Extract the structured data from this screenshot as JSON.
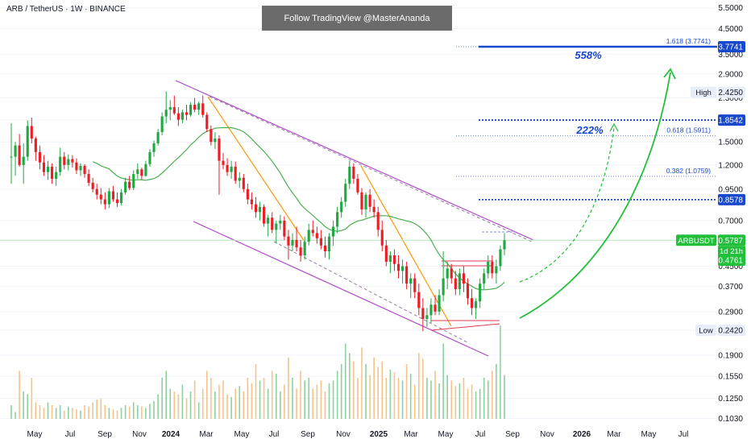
{
  "header": {
    "symbol_line": "ARB / TetherUS · 1W · BINANCE"
  },
  "banner": {
    "text": "Follow TradingView @MasterAnanda"
  },
  "chart_data": {
    "type": "candlestick",
    "scale": "log",
    "y_ticks": [
      "5.5000",
      "4.5000",
      "3.5000",
      "2.9000",
      "2.3000",
      "1.8542",
      "1.5000",
      "1.2000",
      "0.9500",
      "0.7000",
      "0.5787",
      "0.4500",
      "0.3700",
      "0.2900",
      "0.2420",
      "0.1900",
      "0.1550",
      "0.1250",
      "0.1030"
    ],
    "x_ticks": [
      "May",
      "Jul",
      "Sep",
      "Nov",
      "2024",
      "Mar",
      "May",
      "Jul",
      "Sep",
      "Nov",
      "2025",
      "Mar",
      "May",
      "Jul",
      "Sep",
      "Nov",
      "2026",
      "Mar",
      "May",
      "Jul"
    ],
    "price_labels": [
      {
        "text": "3.7741",
        "value": 3.7741,
        "bg": "#1848cc",
        "color": "#ffffff"
      },
      {
        "text": "2.4250",
        "value": 2.425,
        "bg": "#e8eef9",
        "color": "#131722",
        "tag": "High"
      },
      {
        "text": "1.8542",
        "value": 1.8542,
        "bg": "#1848cc",
        "color": "#ffffff"
      },
      {
        "text": "0.8578",
        "value": 0.8578,
        "bg": "#1848cc",
        "color": "#ffffff"
      },
      {
        "text": "0.5787",
        "value": 0.5787,
        "bg": "#22c03a",
        "color": "#ffffff",
        "tag": "ARBUSDT",
        "sub": "1d 21h"
      },
      {
        "text": "0.4761",
        "value": 0.4761,
        "bg": "#22c03a",
        "color": "#ffffff"
      },
      {
        "text": "0.2420",
        "value": 0.242,
        "bg": "#e8eef9",
        "color": "#131722",
        "tag": "Low"
      }
    ],
    "fib_levels": [
      {
        "label": "1.618 (3.7741)",
        "value": 3.7741
      },
      {
        "label": "0.618 (1.5911)",
        "value": 1.5911
      },
      {
        "label": "0.382 (1.0759)",
        "value": 1.0759
      }
    ],
    "targets": [
      {
        "label": "558%",
        "value": 3.7741
      },
      {
        "label": "222%",
        "value": 1.8542
      },
      {
        "label": "",
        "value": 0.8578
      }
    ],
    "candles": [
      [
        1.3,
        1.8,
        1.0,
        1.3
      ],
      [
        1.3,
        1.5,
        1.08,
        1.45
      ],
      [
        1.45,
        1.62,
        1.18,
        1.2
      ],
      [
        1.2,
        1.48,
        1.0,
        1.3
      ],
      [
        1.3,
        1.85,
        1.25,
        1.75
      ],
      [
        1.75,
        1.9,
        1.48,
        1.55
      ],
      [
        1.55,
        1.58,
        1.25,
        1.36
      ],
      [
        1.36,
        1.45,
        1.15,
        1.23
      ],
      [
        1.23,
        1.32,
        1.08,
        1.12
      ],
      [
        1.12,
        1.25,
        1.04,
        1.18
      ],
      [
        1.18,
        1.22,
        1.0,
        1.05
      ],
      [
        1.05,
        1.18,
        0.98,
        1.12
      ],
      [
        1.12,
        1.42,
        1.08,
        1.3
      ],
      [
        1.3,
        1.36,
        1.15,
        1.2
      ],
      [
        1.2,
        1.33,
        1.14,
        1.27
      ],
      [
        1.27,
        1.32,
        1.17,
        1.23
      ],
      [
        1.23,
        1.28,
        1.1,
        1.14
      ],
      [
        1.14,
        1.22,
        1.08,
        1.19
      ],
      [
        1.19,
        1.21,
        1.06,
        1.1
      ],
      [
        1.1,
        1.15,
        0.98,
        1.01
      ],
      [
        1.01,
        1.06,
        0.92,
        0.95
      ],
      [
        0.95,
        1.0,
        0.86,
        0.9
      ],
      [
        0.9,
        0.96,
        0.82,
        0.86
      ],
      [
        0.86,
        0.92,
        0.78,
        0.82
      ],
      [
        0.82,
        0.96,
        0.79,
        0.93
      ],
      [
        0.93,
        0.98,
        0.84,
        0.86
      ],
      [
        0.86,
        0.92,
        0.8,
        0.83
      ],
      [
        0.83,
        0.95,
        0.81,
        0.92
      ],
      [
        0.92,
        1.06,
        0.9,
        1.02
      ],
      [
        1.02,
        1.08,
        0.94,
        0.96
      ],
      [
        0.96,
        1.14,
        0.94,
        1.1
      ],
      [
        1.1,
        1.22,
        1.05,
        1.15
      ],
      [
        1.15,
        1.17,
        1.04,
        1.08
      ],
      [
        1.08,
        1.25,
        1.07,
        1.21
      ],
      [
        1.21,
        1.4,
        1.18,
        1.36
      ],
      [
        1.36,
        1.52,
        1.3,
        1.48
      ],
      [
        1.48,
        1.7,
        1.45,
        1.65
      ],
      [
        1.65,
        2.0,
        1.6,
        1.92
      ],
      [
        1.92,
        2.45,
        1.8,
        2.05
      ],
      [
        2.05,
        2.25,
        1.85,
        2.1
      ],
      [
        2.1,
        2.35,
        1.95,
        1.98
      ],
      [
        1.98,
        2.1,
        1.75,
        1.86
      ],
      [
        1.86,
        2.05,
        1.8,
        2.0
      ],
      [
        2.0,
        2.15,
        1.85,
        1.95
      ],
      [
        1.95,
        2.2,
        1.92,
        2.15
      ],
      [
        2.15,
        2.3,
        2.0,
        2.05
      ],
      [
        2.05,
        2.22,
        1.95,
        2.18
      ],
      [
        2.18,
        2.35,
        1.9,
        1.95
      ],
      [
        1.95,
        2.0,
        1.65,
        1.7
      ],
      [
        1.7,
        1.76,
        1.45,
        1.5
      ],
      [
        1.5,
        1.65,
        1.4,
        1.55
      ],
      [
        1.55,
        1.6,
        0.9,
        1.25
      ],
      [
        1.25,
        1.35,
        1.15,
        1.2
      ],
      [
        1.2,
        1.28,
        1.08,
        1.12
      ],
      [
        1.12,
        1.25,
        1.05,
        1.18
      ],
      [
        1.18,
        1.24,
        1.0,
        1.03
      ],
      [
        1.03,
        1.12,
        0.96,
        1.06
      ],
      [
        1.06,
        1.1,
        0.92,
        0.95
      ],
      [
        0.95,
        1.0,
        0.82,
        0.86
      ],
      [
        0.86,
        0.92,
        0.78,
        0.82
      ],
      [
        0.82,
        0.88,
        0.72,
        0.76
      ],
      [
        0.76,
        0.84,
        0.7,
        0.8
      ],
      [
        0.8,
        0.82,
        0.66,
        0.68
      ],
      [
        0.68,
        0.74,
        0.6,
        0.72
      ],
      [
        0.72,
        0.76,
        0.62,
        0.64
      ],
      [
        0.64,
        0.7,
        0.56,
        0.68
      ],
      [
        0.68,
        0.74,
        0.64,
        0.7
      ],
      [
        0.7,
        0.73,
        0.58,
        0.6
      ],
      [
        0.6,
        0.64,
        0.48,
        0.55
      ],
      [
        0.55,
        0.62,
        0.52,
        0.58
      ],
      [
        0.58,
        0.66,
        0.52,
        0.54
      ],
      [
        0.54,
        0.58,
        0.47,
        0.5
      ],
      [
        0.5,
        0.6,
        0.48,
        0.57
      ],
      [
        0.57,
        0.68,
        0.55,
        0.64
      ],
      [
        0.64,
        0.7,
        0.6,
        0.62
      ],
      [
        0.62,
        0.66,
        0.56,
        0.59
      ],
      [
        0.59,
        0.64,
        0.53,
        0.55
      ],
      [
        0.55,
        0.6,
        0.49,
        0.52
      ],
      [
        0.52,
        0.62,
        0.48,
        0.6
      ],
      [
        0.6,
        0.7,
        0.55,
        0.66
      ],
      [
        0.66,
        0.8,
        0.62,
        0.76
      ],
      [
        0.76,
        0.88,
        0.72,
        0.84
      ],
      [
        0.84,
        1.05,
        0.8,
        1.0
      ],
      [
        1.0,
        1.25,
        0.95,
        1.18
      ],
      [
        1.18,
        1.22,
        1.0,
        1.05
      ],
      [
        1.05,
        1.1,
        0.9,
        0.92
      ],
      [
        0.92,
        0.96,
        0.74,
        0.78
      ],
      [
        0.78,
        0.92,
        0.72,
        0.9
      ],
      [
        0.9,
        0.95,
        0.76,
        0.8
      ],
      [
        0.8,
        0.86,
        0.72,
        0.76
      ],
      [
        0.76,
        0.8,
        0.6,
        0.64
      ],
      [
        0.64,
        0.7,
        0.52,
        0.55
      ],
      [
        0.55,
        0.58,
        0.45,
        0.47
      ],
      [
        0.47,
        0.52,
        0.42,
        0.5
      ],
      [
        0.5,
        0.53,
        0.43,
        0.46
      ],
      [
        0.46,
        0.5,
        0.4,
        0.43
      ],
      [
        0.43,
        0.48,
        0.38,
        0.45
      ],
      [
        0.45,
        0.47,
        0.36,
        0.38
      ],
      [
        0.38,
        0.42,
        0.33,
        0.4
      ],
      [
        0.4,
        0.42,
        0.33,
        0.35
      ],
      [
        0.35,
        0.38,
        0.28,
        0.3
      ],
      [
        0.3,
        0.33,
        0.24,
        0.27
      ],
      [
        0.27,
        0.3,
        0.25,
        0.28
      ],
      [
        0.28,
        0.33,
        0.26,
        0.31
      ],
      [
        0.31,
        0.34,
        0.28,
        0.29
      ],
      [
        0.29,
        0.36,
        0.28,
        0.34
      ],
      [
        0.34,
        0.52,
        0.32,
        0.4
      ],
      [
        0.4,
        0.47,
        0.36,
        0.44
      ],
      [
        0.44,
        0.46,
        0.38,
        0.4
      ],
      [
        0.4,
        0.43,
        0.34,
        0.36
      ],
      [
        0.36,
        0.44,
        0.34,
        0.42
      ],
      [
        0.42,
        0.45,
        0.35,
        0.38
      ],
      [
        0.38,
        0.4,
        0.31,
        0.33
      ],
      [
        0.33,
        0.36,
        0.28,
        0.3
      ],
      [
        0.3,
        0.33,
        0.27,
        0.32
      ],
      [
        0.32,
        0.4,
        0.3,
        0.38
      ],
      [
        0.38,
        0.44,
        0.36,
        0.42
      ],
      [
        0.42,
        0.5,
        0.4,
        0.47
      ],
      [
        0.47,
        0.5,
        0.4,
        0.42
      ],
      [
        0.42,
        0.48,
        0.38,
        0.45
      ],
      [
        0.45,
        0.55,
        0.43,
        0.53
      ],
      [
        0.53,
        0.62,
        0.5,
        0.5787
      ]
    ],
    "volume": [
      0.1,
      0.05,
      0.35,
      0.2,
      0.18,
      0.3,
      0.12,
      0.1,
      0.08,
      0.12,
      0.1,
      0.08,
      0.1,
      0.06,
      0.09,
      0.08,
      0.07,
      0.06,
      0.1,
      0.09,
      0.12,
      0.14,
      0.15,
      0.1,
      0.08,
      0.07,
      0.06,
      0.08,
      0.1,
      0.09,
      0.12,
      0.1,
      0.09,
      0.08,
      0.11,
      0.13,
      0.18,
      0.3,
      0.35,
      0.22,
      0.2,
      0.18,
      0.25,
      0.15,
      0.2,
      0.28,
      0.12,
      0.22,
      0.35,
      0.3,
      0.2,
      0.25,
      0.28,
      0.18,
      0.16,
      0.22,
      0.24,
      0.2,
      0.3,
      0.26,
      0.4,
      0.28,
      0.3,
      0.22,
      0.35,
      0.33,
      0.2,
      0.25,
      0.45,
      0.3,
      0.22,
      0.35,
      0.28,
      0.3,
      0.22,
      0.25,
      0.28,
      0.2,
      0.26,
      0.28,
      0.35,
      0.4,
      0.55,
      0.48,
      0.42,
      0.3,
      0.52,
      0.4,
      0.32,
      0.45,
      0.38,
      0.42,
      0.3,
      0.36,
      0.34,
      0.3,
      0.28,
      0.4,
      0.33,
      0.25,
      0.48,
      0.44,
      0.3,
      0.28,
      0.35,
      0.26,
      0.55,
      0.32,
      0.28,
      0.24,
      0.26,
      0.3,
      0.22,
      0.25,
      0.2,
      0.22,
      0.3,
      0.28,
      0.35,
      0.4,
      0.68,
      0.32
    ],
    "colors": {
      "up": "#089981",
      "down": "#f23645",
      "candle_up": "#22a843",
      "candle_down": "#ee1c25",
      "ma": "#4caf50",
      "channel": "#b04cc8",
      "trend": "#ff9800",
      "fib_blue": "#1848cc",
      "arrow": "#22c03a",
      "flat": "#e23c50"
    }
  }
}
